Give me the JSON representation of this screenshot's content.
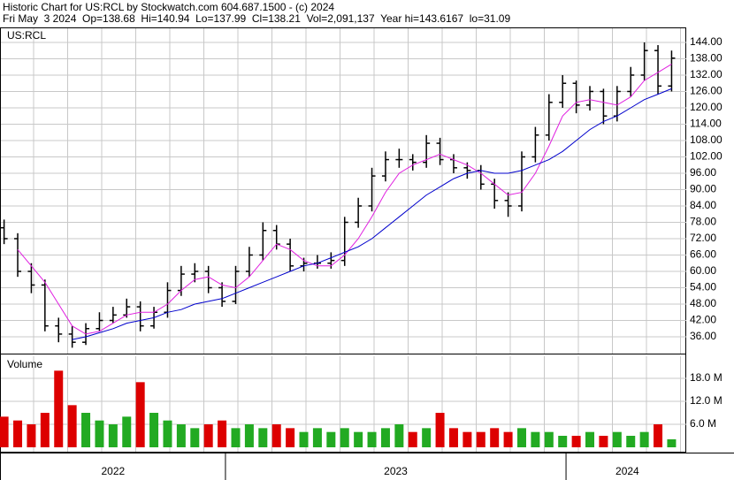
{
  "chart_data": {
    "type": "ohlc",
    "title": "Historic Chart for US:RCL by Stockwatch.com 604.687.1500 - (c) 2024",
    "subtitle": "Fri May  3 2024  Op=138.68  Hi=140.94  Lo=137.99  Cl=138.21  Vol=2,091,137  Year hi=143.6167  lo=31.09",
    "symbol": "US:RCL",
    "volume_label": "Volume",
    "x": [
      2022.35,
      2022.39,
      2022.43,
      2022.47,
      2022.51,
      2022.55,
      2022.59,
      2022.63,
      2022.67,
      2022.71,
      2022.75,
      2022.79,
      2022.83,
      2022.87,
      2022.91,
      2022.95,
      2022.99,
      2023.03,
      2023.07,
      2023.11,
      2023.15,
      2023.19,
      2023.23,
      2023.27,
      2023.31,
      2023.35,
      2023.39,
      2023.43,
      2023.47,
      2023.51,
      2023.55,
      2023.59,
      2023.63,
      2023.67,
      2023.71,
      2023.75,
      2023.79,
      2023.83,
      2023.87,
      2023.91,
      2023.95,
      2023.99,
      2024.03,
      2024.07,
      2024.11,
      2024.15,
      2024.19,
      2024.23,
      2024.27,
      2024.31
    ],
    "open": [
      76,
      72,
      60,
      55,
      40,
      37,
      34,
      39,
      42,
      44,
      47,
      40,
      45,
      53,
      59,
      60,
      54,
      49,
      60,
      66,
      75,
      70,
      62,
      63,
      63,
      64,
      78,
      84,
      95,
      101,
      101,
      100,
      107,
      101,
      98,
      97,
      92,
      86,
      84,
      102,
      110,
      122,
      129,
      121,
      126,
      117,
      126,
      132,
      141,
      128
    ],
    "high": [
      79,
      74,
      63,
      57,
      43,
      40,
      41,
      45,
      47,
      50,
      49,
      47,
      56,
      62,
      63,
      62,
      56,
      62,
      69,
      78,
      77,
      72,
      65,
      66,
      67,
      80,
      87,
      98,
      104,
      105,
      103,
      110,
      109,
      103,
      100,
      99,
      94,
      89,
      104,
      113,
      125,
      132,
      130,
      128,
      127,
      128,
      135,
      144,
      143,
      141
    ],
    "low": [
      70,
      58,
      52,
      38,
      34,
      32,
      33,
      38,
      41,
      43,
      38,
      39,
      43,
      51,
      56,
      52,
      47,
      48,
      58,
      64,
      68,
      60,
      60,
      61,
      61,
      62,
      76,
      82,
      93,
      98,
      97,
      98,
      99,
      96,
      94,
      90,
      83,
      80,
      82,
      100,
      108,
      120,
      118,
      119,
      114,
      115,
      124,
      130,
      125,
      126
    ],
    "close": [
      72,
      60,
      55,
      40,
      37,
      34,
      39,
      42,
      44,
      47,
      40,
      45,
      53,
      59,
      60,
      54,
      49,
      60,
      66,
      75,
      70,
      62,
      63,
      63,
      64,
      78,
      84,
      95,
      101,
      101,
      100,
      107,
      101,
      98,
      97,
      92,
      86,
      84,
      102,
      110,
      122,
      129,
      121,
      126,
      117,
      126,
      132,
      141,
      128,
      138.21
    ],
    "volume": [
      8,
      7,
      6,
      9,
      20,
      11,
      9,
      7,
      6,
      8,
      17,
      9,
      7,
      6,
      5,
      6,
      7,
      5,
      6,
      5,
      6,
      5,
      4,
      5,
      4,
      5,
      4,
      4,
      5,
      6,
      4,
      5,
      9,
      5,
      4,
      4,
      5,
      4,
      5,
      4,
      4,
      3,
      3,
      4,
      3,
      4,
      3,
      4,
      6,
      2.09
    ],
    "bar_color": "#000000",
    "up_color": "#22aa22",
    "down_color": "#dd0000",
    "series": [
      {
        "color": "#e020e0",
        "values": [
          null,
          68,
          62,
          56,
          48,
          40,
          37,
          38,
          41,
          44,
          45,
          45,
          48,
          53,
          57,
          58,
          55,
          54,
          58,
          64,
          70,
          68,
          64,
          62,
          62,
          66,
          72,
          80,
          89,
          96,
          99,
          101,
          103,
          101,
          99,
          96,
          92,
          88,
          89,
          96,
          106,
          117,
          122,
          123,
          122,
          121,
          124,
          130,
          133,
          136
        ]
      },
      {
        "color": "#0000cc",
        "values": [
          null,
          null,
          null,
          null,
          null,
          35,
          36,
          37.5,
          39,
          41,
          42,
          43,
          45,
          46,
          48,
          49,
          50,
          52,
          54,
          56,
          58,
          60,
          62,
          63,
          65,
          67,
          69,
          72,
          76,
          80,
          84,
          88,
          91,
          94,
          96,
          97,
          96,
          96,
          97,
          99,
          101,
          104,
          108,
          112,
          115,
          117,
          120,
          123,
          125,
          127
        ]
      }
    ],
    "xlim": [
      2022.338,
      2024.353
    ],
    "xticks": [
      {
        "value": 2022.67,
        "label": "2022"
      },
      {
        "value": 2023.5,
        "label": "2023"
      },
      {
        "value": 2024.18,
        "label": "2024"
      }
    ],
    "year_dividers": [
      2023,
      2024
    ],
    "ylim": [
      29.84,
      149.5
    ],
    "yticks": [
      {
        "value": 36,
        "label": "36.00"
      },
      {
        "value": 42,
        "label": "42.00"
      },
      {
        "value": 48,
        "label": "48.00"
      },
      {
        "value": 54,
        "label": "54.00"
      },
      {
        "value": 60,
        "label": "60.00"
      },
      {
        "value": 66,
        "label": "66.00"
      },
      {
        "value": 72,
        "label": "72.00"
      },
      {
        "value": 78,
        "label": "78.00"
      },
      {
        "value": 84,
        "label": "84.00"
      },
      {
        "value": 90,
        "label": "90.00"
      },
      {
        "value": 96,
        "label": "96.00"
      },
      {
        "value": 102,
        "label": "102.00"
      },
      {
        "value": 108,
        "label": "108.00"
      },
      {
        "value": 114,
        "label": "114.00"
      },
      {
        "value": 120,
        "label": "120.00"
      },
      {
        "value": 126,
        "label": "126.00"
      },
      {
        "value": 132,
        "label": "132.00"
      },
      {
        "value": 138,
        "label": "138.00"
      },
      {
        "value": 144,
        "label": "144.00"
      }
    ],
    "y2lim": [
      -0.92,
      23.77
    ],
    "y2ticks": [
      {
        "value": 6,
        "label": "6.0 M"
      },
      {
        "value": 12,
        "label": "12.0 M"
      },
      {
        "value": 18,
        "label": "18.0 M"
      }
    ],
    "grid": true
  }
}
